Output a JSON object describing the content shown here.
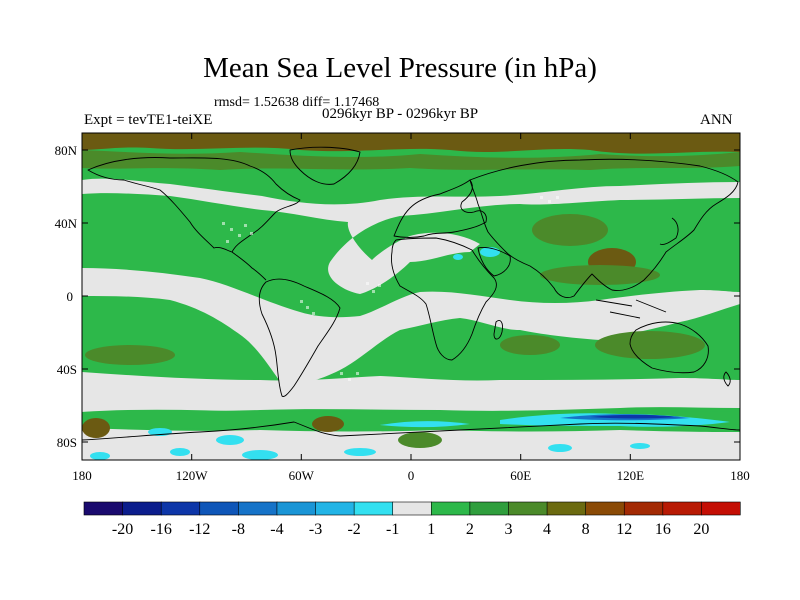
{
  "title": "Mean Sea Level Pressure (in hPa)",
  "stats": "rmsd= 1.52638 diff= 1.17468",
  "experiment": "Expt = tevTE1-teiXE",
  "period": "0296kyr BP - 0296kyr BP",
  "season": "ANN",
  "lat_labels": [
    "80N",
    "40N",
    "0",
    "40S",
    "80S"
  ],
  "lon_labels": [
    "180",
    "120W",
    "60W",
    "0",
    "60E",
    "120E",
    "180"
  ],
  "colorbar": {
    "levels": [
      "-20",
      "-16",
      "-12",
      "-8",
      "-4",
      "-3",
      "-2",
      "-1",
      "1",
      "2",
      "3",
      "4",
      "8",
      "12",
      "16",
      "20"
    ],
    "colors": [
      "#1a0a6e",
      "#0b1d8c",
      "#0d36a8",
      "#0f56b8",
      "#1673c8",
      "#1a95d6",
      "#22b4e6",
      "#33e0f0",
      "#e6e6e6",
      "#2db84a",
      "#2f9e3d",
      "#4b8a2a",
      "#6b6a10",
      "#8a4a06",
      "#a32a04",
      "#b81a04",
      "#c40e04"
    ]
  },
  "colors": {
    "land_outline": "#000000",
    "neutral": "#e6e6e6",
    "positive_light": "#2db84a",
    "positive_mid": "#4b8a2a",
    "positive_high": "#6b5a12",
    "negative_light": "#33e0f0",
    "negative_mid": "#1a95d6",
    "negative_dark": "#0d36a8"
  }
}
